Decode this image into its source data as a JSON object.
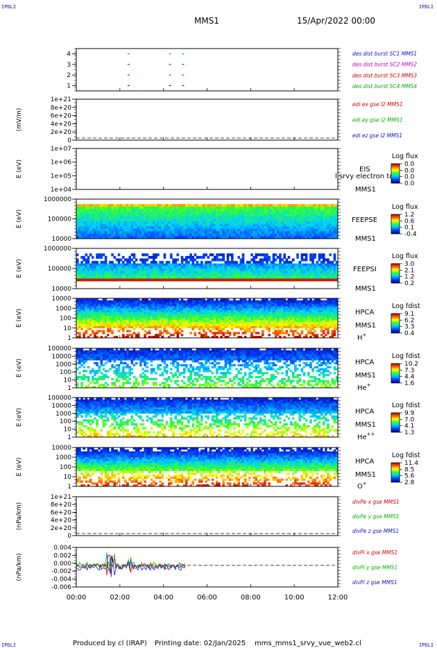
{
  "header": {
    "corner_tl": "IPDLI",
    "corner_tr": "IPDLI",
    "corner_bl": "IPDLI",
    "corner_br": "IPDLI",
    "spacecraft": "MMS1",
    "date": "15/Apr/2022 00:00"
  },
  "footer": {
    "produced": "Produced by cl (IRAP)",
    "printing": "Printing date: 02/Jan/2025",
    "script": "mms_mms1_srvy_vue_web2.cl"
  },
  "colors": {
    "c_blue": "#1010c8",
    "c_red": "#d40000",
    "c_green": "#00b000",
    "c_magenta": "#c000c0"
  },
  "chart_data": [
    {
      "type": "scatter",
      "panel": "burst-availability",
      "yticks": [
        "4",
        "3",
        "2",
        "1"
      ],
      "ylim": [
        0.5,
        4.5
      ],
      "xlim_hours": [
        0,
        12
      ],
      "series": [
        {
          "name": "des dist burst SC1 MMS1",
          "color": "#1010c8",
          "y": 1,
          "x_hours": [
            2.4,
            4.3,
            4.9
          ]
        },
        {
          "name": "des dist burst SC2 MMS2",
          "color": "#c000c0",
          "y": 2,
          "x_hours": [
            2.4,
            4.3,
            4.9
          ]
        },
        {
          "name": "des dist burst SC3 MMS3",
          "color": "#d40000",
          "y": 3,
          "x_hours": [
            2.4,
            4.3,
            4.9
          ]
        },
        {
          "name": "des dist burst SC4 MMS4",
          "color": "#00b000",
          "y": 4,
          "x_hours": [
            2.4,
            4.3,
            4.9
          ]
        }
      ]
    },
    {
      "type": "line",
      "panel": "edi-e-field",
      "ylabel": "(mV/m)",
      "yticks": [
        "1e+21",
        "8e+20",
        "6e+20",
        "4e+20",
        "2e+20",
        "0"
      ],
      "ylim": [
        0,
        1e+21
      ],
      "series": [
        {
          "name": "edi ex gse l2 MMS1",
          "color": "#d40000"
        },
        {
          "name": "edi ey gse l2 MMS1",
          "color": "#00b000"
        },
        {
          "name": "edi ez gse l2 MMS1",
          "color": "#1010c8"
        }
      ]
    },
    {
      "type": "heatmap",
      "panel": "eis",
      "ylabel": "E (eV)",
      "yticks": [
        "1e+07",
        "1e+06",
        "1e+05",
        "1e+04"
      ],
      "label_top": "EIS",
      "label_note": "l srvy electron to",
      "label_bottom": "MMS1",
      "colorbar": {
        "title": "Log flux",
        "ticks": [
          "0.0",
          "0.0",
          "0.0",
          "0.0"
        ]
      }
    },
    {
      "type": "heatmap",
      "panel": "feeps-electron",
      "ylabel": "E (eV)",
      "yticks": [
        "1000000",
        "100000",
        "10000"
      ],
      "label_top": "FEEPSE",
      "label_bottom": "MMS1",
      "colorbar": {
        "title": "Log flux",
        "ticks": [
          "1.2",
          "0.6",
          "0.1",
          "-0.4"
        ]
      }
    },
    {
      "type": "heatmap",
      "panel": "feeps-ion",
      "ylabel": "E (eV)",
      "yticks": [
        "1000000",
        "100000",
        "10000"
      ],
      "label_top": "FEEPSI",
      "label_bottom": "MMS1",
      "colorbar": {
        "title": "Log flux",
        "ticks": [
          "3.0",
          "2.1",
          "1.2",
          "0.2"
        ]
      }
    },
    {
      "type": "heatmap",
      "panel": "hpca-h",
      "ylabel": "E (eV)",
      "yticks": [
        "10000",
        "1000",
        "100",
        "10",
        "1"
      ],
      "label_top": "HPCA",
      "label_mid": "MMS1",
      "species": "H",
      "charge": "+",
      "colorbar": {
        "title": "Log fdist",
        "ticks": [
          "9.1",
          "6.2",
          "3.3",
          "0.4"
        ]
      }
    },
    {
      "type": "heatmap",
      "panel": "hpca-he",
      "ylabel": "E (eV)",
      "yticks": [
        "100000",
        "10000",
        "1000",
        "100",
        "10",
        "1"
      ],
      "label_top": "HPCA",
      "label_mid": "MMS1",
      "species": "He",
      "charge": "+",
      "colorbar": {
        "title": "Log fdist",
        "ticks": [
          "10.2",
          "7.3",
          "4.4",
          "1.6"
        ]
      }
    },
    {
      "type": "heatmap",
      "panel": "hpca-he2",
      "ylabel": "E (eV)",
      "yticks": [
        "100000",
        "10000",
        "1000",
        "100",
        "10",
        "1"
      ],
      "label_top": "HPCA",
      "label_mid": "MMS1",
      "species": "He",
      "charge": "++",
      "colorbar": {
        "title": "Log fdist",
        "ticks": [
          "9.9",
          "7.0",
          "4.1",
          "1.3"
        ]
      }
    },
    {
      "type": "heatmap",
      "panel": "hpca-o",
      "ylabel": "E (eV)",
      "yticks": [
        "10000",
        "1000",
        "100",
        "10",
        "1"
      ],
      "label_top": "HPCA",
      "label_mid": "MMS1",
      "species": "O",
      "charge": "+",
      "colorbar": {
        "title": "Log fdist",
        "ticks": [
          "11.4",
          "8.5",
          "5.6",
          "2.8"
        ]
      }
    },
    {
      "type": "line",
      "panel": "divpe",
      "ylabel": "(nPa/km)",
      "yticks": [
        "1e+21",
        "8e+20",
        "6e+20",
        "4e+20",
        "2e+20",
        "0"
      ],
      "ylim": [
        0,
        1e+21
      ],
      "series": [
        {
          "name": "divPe x gse MMS1",
          "color": "#d40000"
        },
        {
          "name": "divPe y gse MMS1",
          "color": "#00b000"
        },
        {
          "name": "divPe z gse MMS1",
          "color": "#1010c8"
        }
      ]
    },
    {
      "type": "line",
      "panel": "divpi",
      "ylabel": "(nPa/km)",
      "yticks": [
        "0.004",
        "0.002",
        "0.000",
        "-0.002",
        "-0.004",
        "-0.006"
      ],
      "ylim": [
        -0.006,
        0.005
      ],
      "series": [
        {
          "name": "divPi x gse MMS1",
          "color": "#d40000"
        },
        {
          "name": "divPi y gse MMS1",
          "color": "#00b000"
        },
        {
          "name": "divPi z gse MMS1",
          "color": "#1010c8"
        }
      ]
    }
  ],
  "x_axis": {
    "xlim_hours": [
      0,
      12
    ],
    "ticks": [
      "00:00",
      "02:00",
      "04:00",
      "06:00",
      "08:00",
      "10:00",
      "12:00"
    ]
  }
}
